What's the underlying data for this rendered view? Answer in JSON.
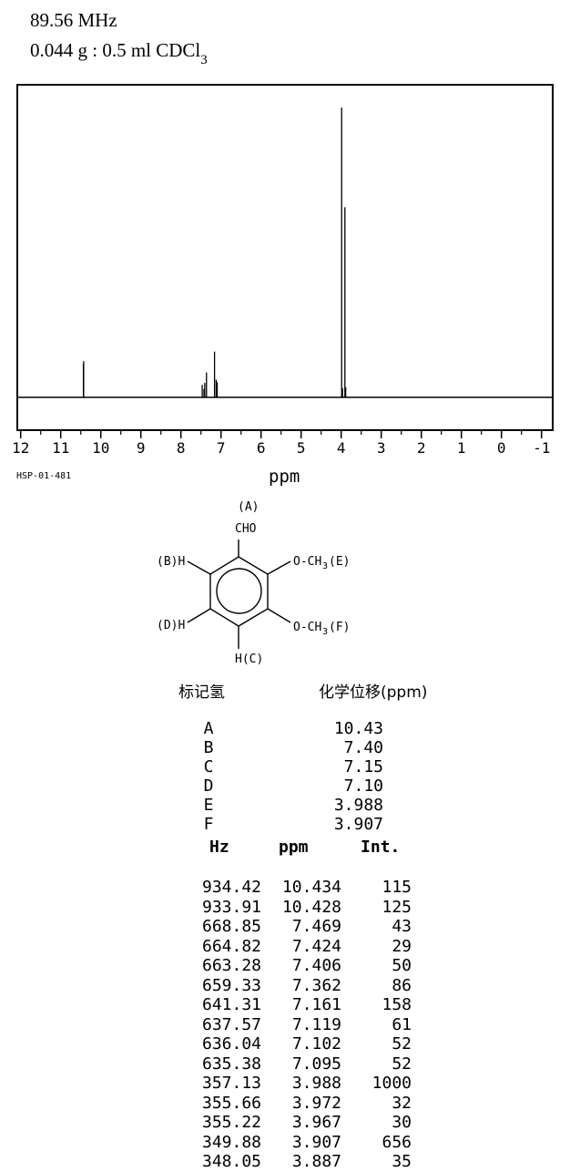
{
  "header": {
    "line1": "89.56 MHz",
    "line2_main": "0.044 g : 0.5 ml CDCl",
    "line2_sub": "3"
  },
  "spectrum": {
    "id_label": "HSP-01-481",
    "axis_label": "ppm",
    "tick_labels": [
      "12",
      "11",
      "10",
      "9",
      "8",
      "7",
      "6",
      "5",
      "4",
      "3",
      "2",
      "1",
      "0",
      "-1"
    ]
  },
  "chart_data": {
    "type": "line",
    "title": "1H NMR spectrum",
    "xlabel": "ppm",
    "x_axis": {
      "min": -1,
      "max": 12,
      "direction": "reversed",
      "major_tick_step": 1,
      "minor_tick_step": 0.5
    },
    "y_axis": {
      "visible": false,
      "max_intensity_ref": 1000
    },
    "grid": false,
    "legend": false,
    "peaks": [
      {
        "hz": 934.42,
        "ppm": 10.434,
        "intensity": 115
      },
      {
        "hz": 933.91,
        "ppm": 10.428,
        "intensity": 125
      },
      {
        "hz": 668.85,
        "ppm": 7.469,
        "intensity": 43
      },
      {
        "hz": 664.82,
        "ppm": 7.424,
        "intensity": 29
      },
      {
        "hz": 663.28,
        "ppm": 7.406,
        "intensity": 50
      },
      {
        "hz": 659.33,
        "ppm": 7.362,
        "intensity": 86
      },
      {
        "hz": 641.31,
        "ppm": 7.161,
        "intensity": 158
      },
      {
        "hz": 637.57,
        "ppm": 7.119,
        "intensity": 61
      },
      {
        "hz": 636.04,
        "ppm": 7.102,
        "intensity": 52
      },
      {
        "hz": 635.38,
        "ppm": 7.095,
        "intensity": 52
      },
      {
        "hz": 357.13,
        "ppm": 3.988,
        "intensity": 1000
      },
      {
        "hz": 355.66,
        "ppm": 3.972,
        "intensity": 32
      },
      {
        "hz": 355.22,
        "ppm": 3.967,
        "intensity": 30
      },
      {
        "hz": 349.88,
        "ppm": 3.907,
        "intensity": 656
      },
      {
        "hz": 348.05,
        "ppm": 3.887,
        "intensity": 35
      }
    ]
  },
  "structure": {
    "label_a": "(A)",
    "cho": "CHO",
    "b_h": "(B)H",
    "d_h": "(D)H",
    "h_c": "H(C)",
    "e_prefix": "O-CH",
    "e_sub": "3",
    "e_suffix": "(E)",
    "f_prefix": "O-CH",
    "f_sub": "3",
    "f_suffix": "(F)"
  },
  "assignment_table": {
    "col1_header": "标记氢",
    "col2_header": "化学位移(ppm)",
    "rows": [
      {
        "label": "A",
        "shift": "10.43"
      },
      {
        "label": "B",
        "shift": "7.40"
      },
      {
        "label": "C",
        "shift": "7.15"
      },
      {
        "label": "D",
        "shift": "7.10"
      },
      {
        "label": "E",
        "shift": "3.988"
      },
      {
        "label": "F",
        "shift": "3.907"
      }
    ]
  },
  "peak_table": {
    "headers": [
      "Hz",
      "ppm",
      "Int."
    ],
    "rows": [
      [
        "934.42",
        "10.434",
        "115"
      ],
      [
        "933.91",
        "10.428",
        "125"
      ],
      [
        "668.85",
        "7.469",
        "43"
      ],
      [
        "664.82",
        "7.424",
        "29"
      ],
      [
        "663.28",
        "7.406",
        "50"
      ],
      [
        "659.33",
        "7.362",
        "86"
      ],
      [
        "641.31",
        "7.161",
        "158"
      ],
      [
        "637.57",
        "7.119",
        "61"
      ],
      [
        "636.04",
        "7.102",
        "52"
      ],
      [
        "635.38",
        "7.095",
        "52"
      ],
      [
        "357.13",
        "3.988",
        "1000"
      ],
      [
        "355.66",
        "3.972",
        "32"
      ],
      [
        "355.22",
        "3.967",
        "30"
      ],
      [
        "349.88",
        "3.907",
        "656"
      ],
      [
        "348.05",
        "3.887",
        "35"
      ]
    ]
  }
}
